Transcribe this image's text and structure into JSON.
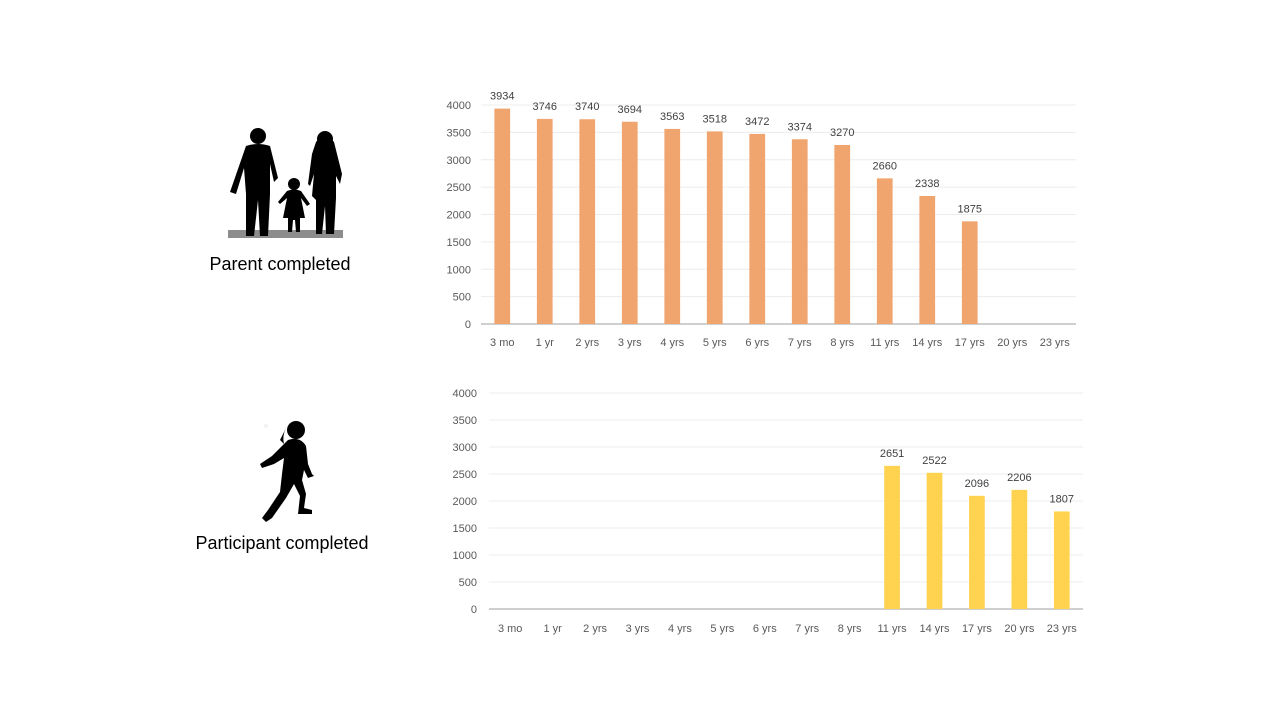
{
  "panels": {
    "parent": {
      "label": "Parent completed",
      "icon": "family-silhouette-icon"
    },
    "participant": {
      "label": "Participant completed",
      "icon": "running-child-silhouette-icon"
    }
  },
  "chart_data": [
    {
      "type": "bar",
      "categories": [
        "3 mo",
        "1 yr",
        "2 yrs",
        "3 yrs",
        "4 yrs",
        "5 yrs",
        "6 yrs",
        "7 yrs",
        "8 yrs",
        "11 yrs",
        "14 yrs",
        "17 yrs",
        "20 yrs",
        "23 yrs"
      ],
      "values": [
        3934,
        3746,
        3740,
        3694,
        3563,
        3518,
        3472,
        3374,
        3270,
        2660,
        2338,
        1875,
        null,
        null
      ],
      "ylim": [
        0,
        4000
      ],
      "yticks": [
        0,
        500,
        1000,
        1500,
        2000,
        2500,
        3000,
        3500,
        4000
      ],
      "grid": true,
      "color": "#F0A46E",
      "data_labels": true,
      "legend": "none"
    },
    {
      "type": "bar",
      "categories": [
        "3 mo",
        "1 yr",
        "2 yrs",
        "3 yrs",
        "4 yrs",
        "5 yrs",
        "6 yrs",
        "7 yrs",
        "8 yrs",
        "11 yrs",
        "14 yrs",
        "17 yrs",
        "20 yrs",
        "23 yrs"
      ],
      "values": [
        null,
        null,
        null,
        null,
        null,
        null,
        null,
        null,
        null,
        2651,
        2522,
        2096,
        2206,
        1807
      ],
      "ylim": [
        0,
        4000
      ],
      "yticks": [
        0,
        500,
        1000,
        1500,
        2000,
        2500,
        3000,
        3500,
        4000
      ],
      "grid": true,
      "color": "#FFD34F",
      "data_labels": true,
      "legend": "none"
    }
  ]
}
